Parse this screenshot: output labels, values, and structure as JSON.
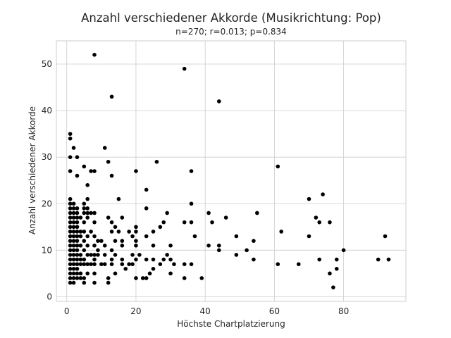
{
  "chart_data": {
    "type": "scatter",
    "title": "Anzahl verschiedener Akkorde (Musikrichtung: Pop)",
    "subtitle": "n=270; r=0.013; p=0.834",
    "xlabel": "Höchste Chartplatzierung",
    "ylabel": "Anzahl verschiedener Akkorde",
    "xlim": [
      -3,
      98
    ],
    "ylim": [
      -1,
      55
    ],
    "xticks": [
      0,
      20,
      40,
      60,
      80
    ],
    "yticks": [
      0,
      10,
      20,
      30,
      40,
      50
    ],
    "grid": true,
    "marker_color": "#000000",
    "points": [
      [
        1,
        35
      ],
      [
        1,
        34
      ],
      [
        1,
        30
      ],
      [
        1,
        27
      ],
      [
        1,
        21
      ],
      [
        1,
        20
      ],
      [
        1,
        19
      ],
      [
        1,
        18
      ],
      [
        1,
        17
      ],
      [
        1,
        16
      ],
      [
        1,
        15
      ],
      [
        1,
        14
      ],
      [
        1,
        13
      ],
      [
        1,
        12
      ],
      [
        1,
        11
      ],
      [
        1,
        10
      ],
      [
        1,
        9
      ],
      [
        1,
        8
      ],
      [
        1,
        7
      ],
      [
        1,
        6
      ],
      [
        1,
        5
      ],
      [
        1,
        4
      ],
      [
        1,
        3
      ],
      [
        2,
        32
      ],
      [
        2,
        20
      ],
      [
        2,
        19
      ],
      [
        2,
        18
      ],
      [
        2,
        17
      ],
      [
        2,
        16
      ],
      [
        2,
        15
      ],
      [
        2,
        14
      ],
      [
        2,
        13
      ],
      [
        2,
        12
      ],
      [
        2,
        11
      ],
      [
        2,
        10
      ],
      [
        2,
        9
      ],
      [
        2,
        8
      ],
      [
        2,
        7
      ],
      [
        2,
        6
      ],
      [
        2,
        5
      ],
      [
        2,
        4
      ],
      [
        2,
        3
      ],
      [
        3,
        30
      ],
      [
        3,
        26
      ],
      [
        3,
        19
      ],
      [
        3,
        18
      ],
      [
        3,
        17
      ],
      [
        3,
        16
      ],
      [
        3,
        15
      ],
      [
        3,
        14
      ],
      [
        3,
        13
      ],
      [
        3,
        12
      ],
      [
        3,
        11
      ],
      [
        3,
        10
      ],
      [
        3,
        9
      ],
      [
        3,
        8
      ],
      [
        3,
        7
      ],
      [
        3,
        6
      ],
      [
        3,
        5
      ],
      [
        3,
        4
      ],
      [
        4,
        17
      ],
      [
        4,
        14
      ],
      [
        4,
        13
      ],
      [
        4,
        11
      ],
      [
        4,
        9
      ],
      [
        4,
        8
      ],
      [
        4,
        7
      ],
      [
        4,
        5
      ],
      [
        4,
        4
      ],
      [
        5,
        28
      ],
      [
        5,
        20
      ],
      [
        5,
        19
      ],
      [
        5,
        18
      ],
      [
        5,
        16
      ],
      [
        5,
        14
      ],
      [
        5,
        12
      ],
      [
        5,
        10
      ],
      [
        5,
        8
      ],
      [
        5,
        7
      ],
      [
        5,
        4
      ],
      [
        5,
        3
      ],
      [
        6,
        24
      ],
      [
        6,
        21
      ],
      [
        6,
        19
      ],
      [
        6,
        18
      ],
      [
        6,
        17
      ],
      [
        6,
        13
      ],
      [
        6,
        11
      ],
      [
        6,
        9
      ],
      [
        6,
        7
      ],
      [
        6,
        5
      ],
      [
        7,
        27
      ],
      [
        7,
        18
      ],
      [
        7,
        14
      ],
      [
        7,
        9
      ],
      [
        7,
        7
      ],
      [
        8,
        52
      ],
      [
        8,
        27
      ],
      [
        8,
        18
      ],
      [
        8,
        16
      ],
      [
        8,
        13
      ],
      [
        8,
        11
      ],
      [
        8,
        9
      ],
      [
        8,
        8
      ],
      [
        8,
        7
      ],
      [
        8,
        5
      ],
      [
        8,
        3
      ],
      [
        9,
        12
      ],
      [
        9,
        10
      ],
      [
        9,
        9
      ],
      [
        10,
        12
      ],
      [
        10,
        7
      ],
      [
        11,
        32
      ],
      [
        11,
        11
      ],
      [
        11,
        9
      ],
      [
        11,
        7
      ],
      [
        12,
        29
      ],
      [
        12,
        17
      ],
      [
        12,
        4
      ],
      [
        12,
        3
      ],
      [
        13,
        43
      ],
      [
        13,
        26
      ],
      [
        13,
        16
      ],
      [
        13,
        14
      ],
      [
        13,
        10
      ],
      [
        13,
        8
      ],
      [
        13,
        7
      ],
      [
        14,
        15
      ],
      [
        14,
        12
      ],
      [
        14,
        9
      ],
      [
        14,
        5
      ],
      [
        15,
        21
      ],
      [
        15,
        14
      ],
      [
        16,
        17
      ],
      [
        16,
        12
      ],
      [
        16,
        11
      ],
      [
        16,
        8
      ],
      [
        16,
        7
      ],
      [
        17,
        6
      ],
      [
        18,
        14
      ],
      [
        18,
        7
      ],
      [
        19,
        13
      ],
      [
        19,
        9
      ],
      [
        19,
        7
      ],
      [
        20,
        27
      ],
      [
        20,
        15
      ],
      [
        20,
        14
      ],
      [
        20,
        12
      ],
      [
        20,
        11
      ],
      [
        20,
        8
      ],
      [
        20,
        4
      ],
      [
        21,
        9
      ],
      [
        22,
        4
      ],
      [
        23,
        23
      ],
      [
        23,
        19
      ],
      [
        23,
        13
      ],
      [
        23,
        8
      ],
      [
        23,
        4
      ],
      [
        24,
        5
      ],
      [
        25,
        14
      ],
      [
        25,
        11
      ],
      [
        25,
        8
      ],
      [
        25,
        6
      ],
      [
        26,
        29
      ],
      [
        27,
        15
      ],
      [
        27,
        7
      ],
      [
        28,
        16
      ],
      [
        28,
        8
      ],
      [
        29,
        18
      ],
      [
        29,
        9
      ],
      [
        30,
        11
      ],
      [
        30,
        8
      ],
      [
        30,
        5
      ],
      [
        31,
        7
      ],
      [
        34,
        49
      ],
      [
        34,
        16
      ],
      [
        34,
        7
      ],
      [
        34,
        4
      ],
      [
        36,
        27
      ],
      [
        36,
        20
      ],
      [
        36,
        16
      ],
      [
        36,
        7
      ],
      [
        37,
        13
      ],
      [
        39,
        4
      ],
      [
        41,
        18
      ],
      [
        41,
        11
      ],
      [
        42,
        16
      ],
      [
        44,
        42
      ],
      [
        44,
        11
      ],
      [
        44,
        10
      ],
      [
        46,
        17
      ],
      [
        49,
        13
      ],
      [
        49,
        9
      ],
      [
        52,
        10
      ],
      [
        54,
        12
      ],
      [
        54,
        8
      ],
      [
        55,
        18
      ],
      [
        61,
        28
      ],
      [
        61,
        7
      ],
      [
        62,
        14
      ],
      [
        67,
        7
      ],
      [
        70,
        21
      ],
      [
        70,
        13
      ],
      [
        72,
        17
      ],
      [
        73,
        16
      ],
      [
        73,
        8
      ],
      [
        74,
        22
      ],
      [
        76,
        16
      ],
      [
        76,
        5
      ],
      [
        77,
        2
      ],
      [
        78,
        8
      ],
      [
        78,
        6
      ],
      [
        80,
        10
      ],
      [
        90,
        8
      ],
      [
        92,
        13
      ],
      [
        93,
        8
      ]
    ]
  }
}
